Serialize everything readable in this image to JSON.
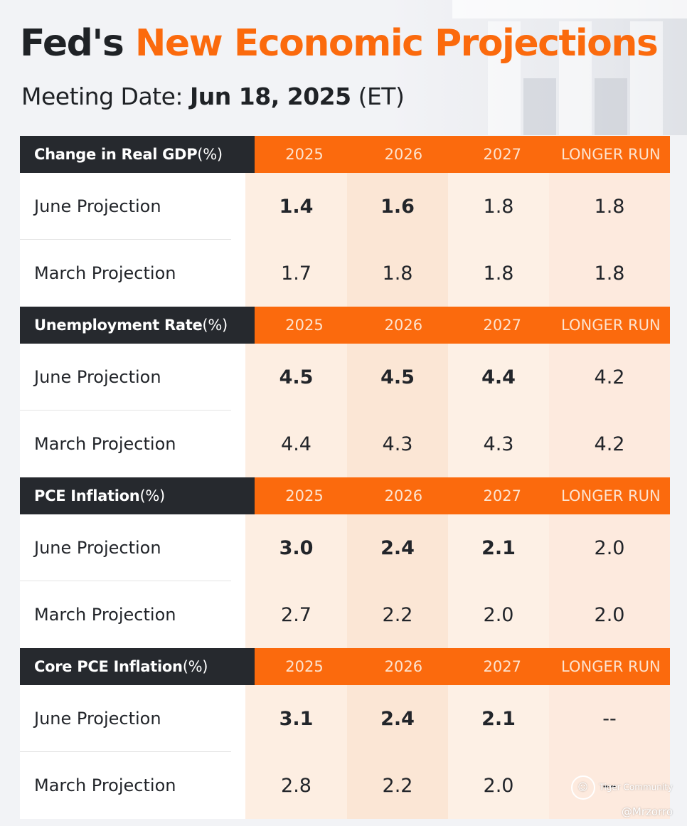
{
  "header": {
    "title_part1": "Fed's ",
    "title_part2": "New Economic Projections",
    "meeting_label": "Meeting Date: ",
    "meeting_date": "Jun 18, 2025",
    "meeting_tz": " (ET)"
  },
  "colors": {
    "accent": "#fb6a0d",
    "dark": "#26292e"
  },
  "columns": [
    "2025",
    "2026",
    "2027",
    "LONGER RUN"
  ],
  "sections": [
    {
      "category": "Change in Real GDP",
      "unit": "(%)",
      "rows": [
        {
          "label": "June Projection",
          "values": [
            "1.4",
            "1.6",
            "1.8",
            "1.8"
          ]
        },
        {
          "label": "March Projection",
          "values": [
            "1.7",
            "1.8",
            "1.8",
            "1.8"
          ]
        }
      ]
    },
    {
      "category": "Unemployment Rate",
      "unit": "(%)",
      "rows": [
        {
          "label": "June Projection",
          "values": [
            "4.5",
            "4.5",
            "4.4",
            "4.2"
          ]
        },
        {
          "label": "March Projection",
          "values": [
            "4.4",
            "4.3",
            "4.3",
            "4.2"
          ]
        }
      ]
    },
    {
      "category": "PCE Inflation",
      "unit": "(%)",
      "rows": [
        {
          "label": "June Projection",
          "values": [
            "3.0",
            "2.4",
            "2.1",
            "2.0"
          ]
        },
        {
          "label": "March Projection",
          "values": [
            "2.7",
            "2.2",
            "2.0",
            "2.0"
          ]
        }
      ]
    },
    {
      "category": "Core PCE Inflation",
      "unit": "(%)",
      "rows": [
        {
          "label": "June Projection",
          "values": [
            "3.1",
            "2.4",
            "2.1",
            "--"
          ]
        },
        {
          "label": "March Projection",
          "values": [
            "2.8",
            "2.2",
            "2.0",
            "--"
          ]
        }
      ]
    }
  ],
  "watermark": {
    "brand": "Tiger Community",
    "handle": "@Mrzorro"
  }
}
